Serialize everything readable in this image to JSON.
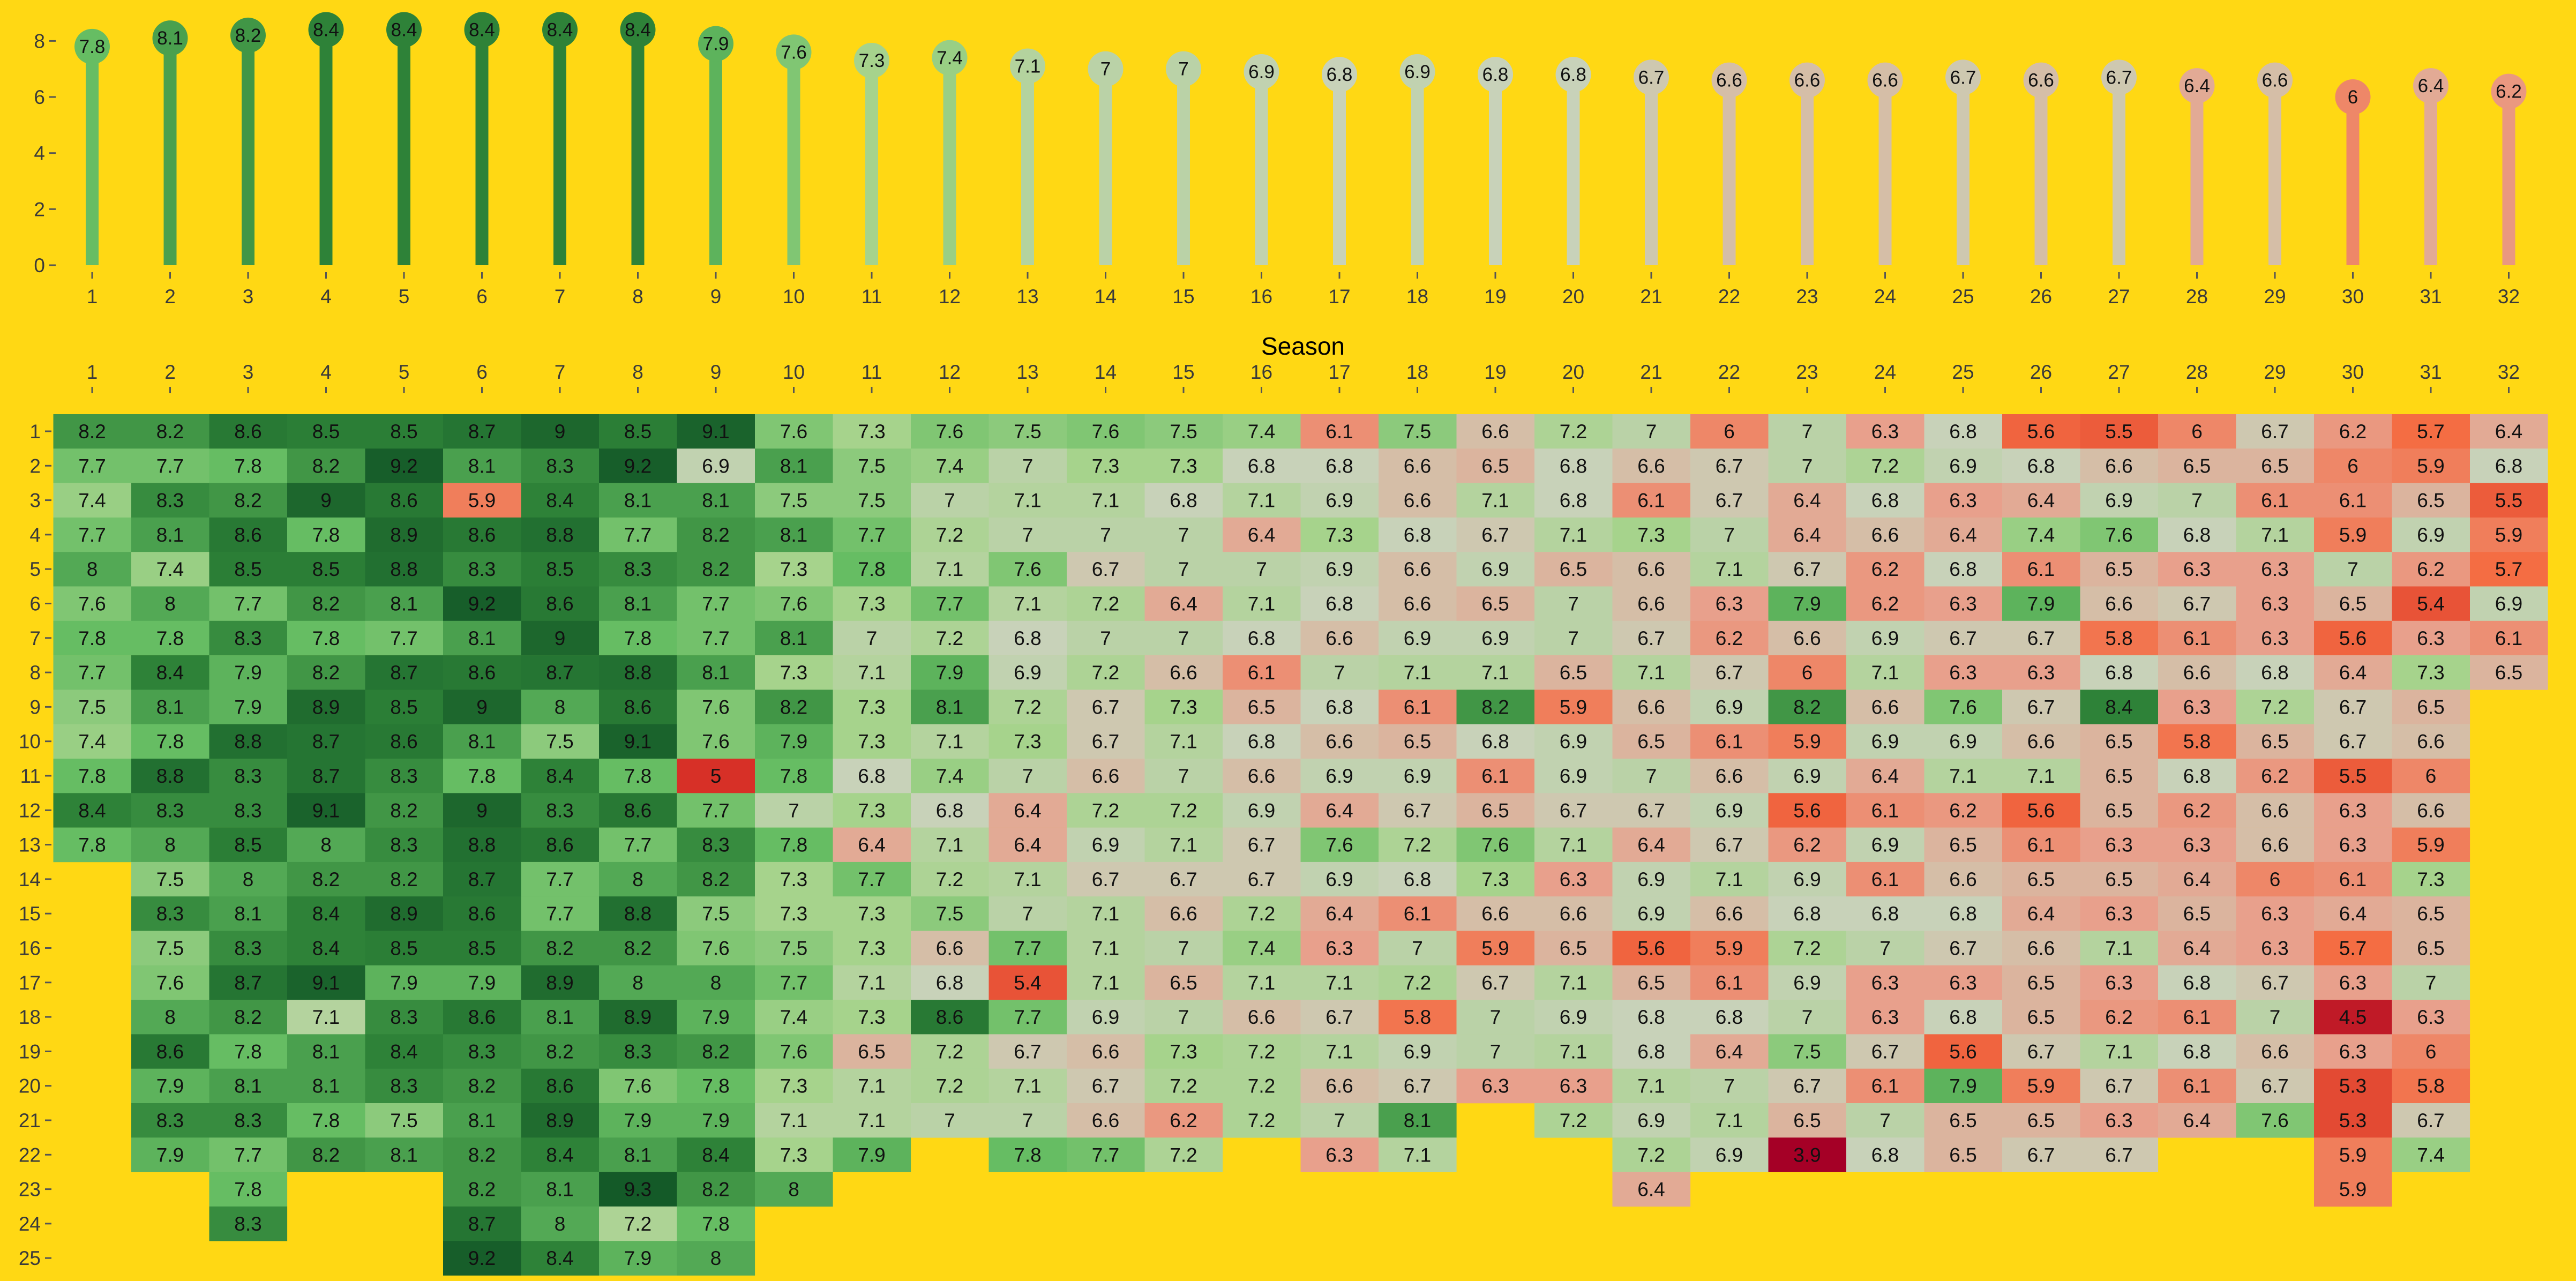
{
  "chart_data": [
    {
      "type": "lollipop",
      "x": [
        1,
        2,
        3,
        4,
        5,
        6,
        7,
        8,
        9,
        10,
        11,
        12,
        13,
        14,
        15,
        16,
        17,
        18,
        19,
        20,
        21,
        22,
        23,
        24,
        25,
        26,
        27,
        28,
        29,
        30,
        31,
        32
      ],
      "values": [
        7.8,
        8.1,
        8.2,
        8.4,
        8.4,
        8.4,
        8.4,
        8.4,
        7.9,
        7.6,
        7.3,
        7.4,
        7.1,
        7,
        7,
        6.9,
        6.8,
        6.9,
        6.8,
        6.8,
        6.7,
        6.6,
        6.6,
        6.6,
        6.7,
        6.6,
        6.7,
        6.4,
        6.6,
        6,
        6.4,
        6.2
      ],
      "x_tick_labels": [
        "1",
        "2",
        "3",
        "4",
        "5",
        "6",
        "7",
        "8",
        "9",
        "10",
        "11",
        "12",
        "13",
        "14",
        "15",
        "16",
        "17",
        "18",
        "19",
        "20",
        "21",
        "22",
        "23",
        "24",
        "25",
        "26",
        "27",
        "28",
        "29",
        "30",
        "31",
        "32"
      ],
      "y_tick_labels": [
        "0",
        "2",
        "4",
        "6",
        "8"
      ],
      "ylim": [
        0,
        8.6
      ],
      "xlabel": "",
      "ylabel": ""
    },
    {
      "type": "heatmap",
      "xlabel": "Season",
      "ylabel": "",
      "x_tick_labels": [
        "1",
        "2",
        "3",
        "4",
        "5",
        "6",
        "7",
        "8",
        "9",
        "10",
        "11",
        "12",
        "13",
        "14",
        "15",
        "16",
        "17",
        "18",
        "19",
        "20",
        "21",
        "22",
        "23",
        "24",
        "25",
        "26",
        "27",
        "28",
        "29",
        "30",
        "31",
        "32"
      ],
      "y_tick_labels": [
        "1",
        "2",
        "3",
        "4",
        "5",
        "6",
        "7",
        "8",
        "9",
        "10",
        "11",
        "12",
        "13",
        "14",
        "15",
        "16",
        "17",
        "18",
        "19",
        "20",
        "21",
        "22",
        "23",
        "24",
        "25"
      ],
      "seasons": [
        [
          8.2,
          7.7,
          7.4,
          7.7,
          8,
          7.6,
          7.8,
          7.7,
          7.5,
          7.4,
          7.8,
          8.4,
          7.8
        ],
        [
          8.2,
          7.7,
          8.3,
          8.1,
          7.4,
          8,
          7.8,
          8.4,
          8.1,
          7.8,
          8.8,
          8.3,
          8,
          7.5,
          8.3,
          7.5,
          7.6,
          8,
          8.6,
          7.9,
          8.3,
          7.9
        ],
        [
          8.6,
          7.8,
          8.2,
          8.6,
          8.5,
          7.7,
          8.3,
          7.9,
          7.9,
          8.8,
          8.3,
          8.3,
          8.5,
          8,
          8.1,
          8.3,
          8.7,
          8.2,
          7.8,
          8.1,
          8.3,
          7.7,
          7.8,
          8.3
        ],
        [
          8.5,
          8.2,
          9,
          7.8,
          8.5,
          8.2,
          7.8,
          8.2,
          8.9,
          8.7,
          8.7,
          9.1,
          8,
          8.2,
          8.4,
          8.4,
          9.1,
          7.1,
          8.1,
          8.1,
          7.8,
          8.2
        ],
        [
          8.5,
          9.2,
          8.6,
          8.9,
          8.8,
          8.1,
          7.7,
          8.7,
          8.5,
          8.6,
          8.3,
          8.2,
          8.3,
          8.2,
          8.9,
          8.5,
          7.9,
          8.3,
          8.4,
          8.3,
          7.5,
          8.1
        ],
        [
          8.7,
          8.1,
          5.9,
          8.6,
          8.3,
          9.2,
          8.1,
          8.6,
          9,
          8.1,
          7.8,
          9,
          8.8,
          8.7,
          8.6,
          8.5,
          7.9,
          8.6,
          8.3,
          8.2,
          8.1,
          8.2,
          8.2,
          8.7,
          9.2
        ],
        [
          9,
          8.3,
          8.4,
          8.8,
          8.5,
          8.6,
          9,
          8.7,
          8,
          7.5,
          8.4,
          8.3,
          8.6,
          7.7,
          7.7,
          8.2,
          8.9,
          8.1,
          8.2,
          8.6,
          8.9,
          8.4,
          8.1,
          8,
          8.4
        ],
        [
          8.5,
          9.2,
          8.1,
          7.7,
          8.3,
          8.1,
          7.8,
          8.8,
          8.6,
          9.1,
          7.8,
          8.6,
          7.7,
          8,
          8.8,
          8.2,
          8,
          8.9,
          8.3,
          7.6,
          7.9,
          8.1,
          9.3,
          7.2,
          7.9
        ],
        [
          9.1,
          6.9,
          8.1,
          8.2,
          8.2,
          7.7,
          7.7,
          8.1,
          7.6,
          7.6,
          5,
          7.7,
          8.3,
          8.2,
          7.5,
          7.6,
          8,
          7.9,
          8.2,
          7.8,
          7.9,
          8.4,
          8.2,
          7.8,
          8
        ],
        [
          7.6,
          8.1,
          7.5,
          8.1,
          7.3,
          7.6,
          8.1,
          7.3,
          8.2,
          7.9,
          7.8,
          7,
          7.8,
          7.3,
          7.3,
          7.5,
          7.7,
          7.4,
          7.6,
          7.3,
          7.1,
          7.3,
          8
        ],
        [
          7.3,
          7.5,
          7.5,
          7.7,
          7.8,
          7.3,
          7,
          7.1,
          7.3,
          7.3,
          6.8,
          7.3,
          6.4,
          7.7,
          7.3,
          7.3,
          7.1,
          7.3,
          6.5,
          7.1,
          7.1,
          7.9
        ],
        [
          7.6,
          7.4,
          7,
          7.2,
          7.1,
          7.7,
          7.2,
          7.9,
          8.1,
          7.1,
          7.4,
          6.8,
          7.1,
          7.2,
          7.5,
          6.6,
          6.8,
          8.6,
          7.2,
          7.2,
          7
        ],
        [
          7.5,
          7,
          7.1,
          7,
          7.6,
          7.1,
          6.8,
          6.9,
          7.2,
          7.3,
          7,
          6.4,
          6.4,
          7.1,
          7,
          7.7,
          5.4,
          7.7,
          6.7,
          7.1,
          7,
          7.8
        ],
        [
          7.6,
          7.3,
          7.1,
          7,
          6.7,
          7.2,
          7,
          7.2,
          6.7,
          6.7,
          6.6,
          7.2,
          6.9,
          6.7,
          7.1,
          7.1,
          7.1,
          6.9,
          6.6,
          6.7,
          6.6,
          7.7
        ],
        [
          7.5,
          7.3,
          6.8,
          7,
          7,
          6.4,
          7,
          6.6,
          7.3,
          7.1,
          7,
          7.2,
          7.1,
          6.7,
          6.6,
          7,
          6.5,
          7,
          7.3,
          7.2,
          6.2,
          7.2
        ],
        [
          7.4,
          6.8,
          7.1,
          6.4,
          7,
          7.1,
          6.8,
          6.1,
          6.5,
          6.8,
          6.6,
          6.9,
          6.7,
          6.7,
          7.2,
          7.4,
          7.1,
          6.6,
          7.2,
          7.2,
          7.2
        ],
        [
          6.1,
          6.8,
          6.9,
          7.3,
          6.9,
          6.8,
          6.6,
          7,
          6.8,
          6.6,
          6.9,
          6.4,
          7.6,
          6.9,
          6.4,
          6.3,
          7.1,
          6.7,
          7.1,
          6.6,
          7,
          6.3
        ],
        [
          7.5,
          6.6,
          6.6,
          6.8,
          6.6,
          6.6,
          6.9,
          7.1,
          6.1,
          6.5,
          6.9,
          6.7,
          7.2,
          6.8,
          6.1,
          7,
          7.2,
          5.8,
          6.9,
          6.7,
          8.1,
          7.1
        ],
        [
          6.6,
          6.5,
          7.1,
          6.7,
          6.9,
          6.5,
          6.9,
          7.1,
          8.2,
          6.8,
          6.1,
          6.5,
          7.6,
          7.3,
          6.6,
          5.9,
          6.7,
          7,
          7,
          6.3
        ],
        [
          7.2,
          6.8,
          6.8,
          7.1,
          6.5,
          7,
          7,
          6.5,
          5.9,
          6.9,
          6.9,
          6.7,
          7.1,
          6.3,
          6.6,
          6.5,
          7.1,
          6.9,
          7.1,
          6.3,
          7.2
        ],
        [
          7,
          6.6,
          6.1,
          7.3,
          6.6,
          6.6,
          6.7,
          7.1,
          6.6,
          6.5,
          7,
          6.7,
          6.4,
          6.9,
          6.9,
          5.6,
          6.5,
          6.8,
          6.8,
          7.1,
          6.9,
          7.2,
          6.4
        ],
        [
          6,
          6.7,
          6.7,
          7,
          7.1,
          6.3,
          6.2,
          6.7,
          6.9,
          6.1,
          6.6,
          6.9,
          6.7,
          7.1,
          6.6,
          5.9,
          6.1,
          6.8,
          6.4,
          7,
          7.1,
          6.9
        ],
        [
          7,
          7,
          6.4,
          6.4,
          6.7,
          7.9,
          6.6,
          6,
          8.2,
          5.9,
          6.9,
          5.6,
          6.2,
          6.9,
          6.8,
          7.2,
          6.9,
          7,
          7.5,
          6.7,
          6.5,
          3.9
        ],
        [
          6.3,
          7.2,
          6.8,
          6.6,
          6.2,
          6.2,
          6.9,
          7.1,
          6.6,
          6.9,
          6.4,
          6.1,
          6.9,
          6.1,
          6.8,
          7,
          6.3,
          6.3,
          6.7,
          6.1,
          7,
          6.8
        ],
        [
          6.8,
          6.9,
          6.3,
          6.4,
          6.8,
          6.3,
          6.7,
          6.3,
          7.6,
          6.9,
          7.1,
          6.2,
          6.5,
          6.6,
          6.8,
          6.7,
          6.3,
          6.8,
          5.6,
          7.9,
          6.5,
          6.5
        ],
        [
          5.6,
          6.8,
          6.4,
          7.4,
          6.1,
          7.9,
          6.7,
          6.3,
          6.7,
          6.6,
          7.1,
          5.6,
          6.1,
          6.5,
          6.4,
          6.6,
          6.5,
          6.5,
          6.7,
          5.9,
          6.5,
          6.7
        ],
        [
          5.5,
          6.6,
          6.9,
          7.6,
          6.5,
          6.6,
          5.8,
          6.8,
          8.4,
          6.5,
          6.5,
          6.5,
          6.3,
          6.5,
          6.3,
          7.1,
          6.3,
          6.2,
          7.1,
          6.7,
          6.3,
          6.7
        ],
        [
          6,
          6.5,
          7,
          6.8,
          6.3,
          6.7,
          6.1,
          6.6,
          6.3,
          5.8,
          6.8,
          6.2,
          6.3,
          6.4,
          6.5,
          6.4,
          6.8,
          6.1,
          6.8,
          6.1,
          6.4
        ],
        [
          6.7,
          6.5,
          6.1,
          7.1,
          6.3,
          6.3,
          6.3,
          6.8,
          7.2,
          6.5,
          6.2,
          6.6,
          6.6,
          6,
          6.3,
          6.3,
          6.7,
          7,
          6.6,
          6.7,
          7.6
        ],
        [
          6.2,
          6,
          6.1,
          5.9,
          7,
          6.5,
          5.6,
          6.4,
          6.7,
          6.7,
          5.5,
          6.3,
          6.3,
          6.1,
          6.4,
          5.7,
          6.3,
          4.5,
          6.3,
          5.3,
          5.3,
          5.9,
          5.9
        ],
        [
          5.7,
          5.9,
          6.5,
          6.9,
          6.2,
          5.4,
          6.3,
          7.3,
          6.5,
          6.6,
          6,
          6.6,
          5.9,
          7.3,
          6.5,
          6.5,
          7,
          6.3,
          6,
          5.8,
          6.7,
          7.4
        ],
        [
          6.4,
          6.8,
          5.5,
          5.9,
          5.7,
          6.9,
          6.1,
          6.5
        ]
      ]
    }
  ]
}
